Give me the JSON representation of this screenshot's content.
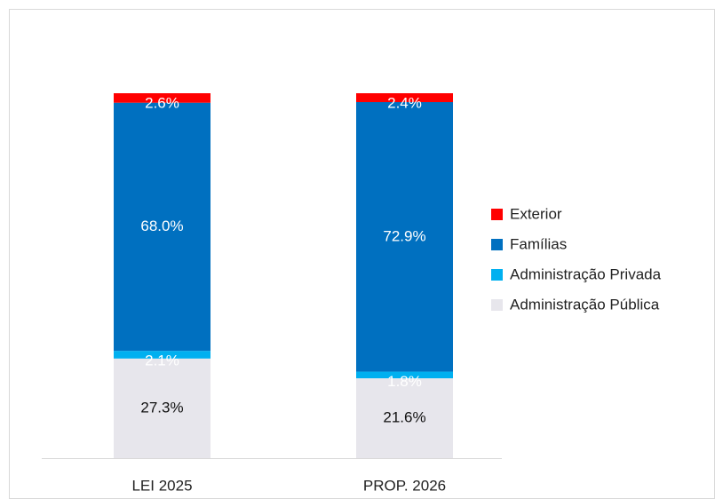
{
  "chart_data": {
    "type": "stacked_bar_100",
    "categories": [
      "LEI 2025",
      "PROP. 2026"
    ],
    "series": [
      {
        "name": "Administração Pública",
        "color": "#e7e6ec",
        "values": [
          27.3,
          21.6
        ],
        "value_labels": [
          "27.3%",
          "21.6%"
        ]
      },
      {
        "name": "Administração Privada",
        "color": "#00b0f0",
        "values": [
          2.1,
          1.8
        ],
        "value_labels": [
          "2.1%",
          "1.8%"
        ]
      },
      {
        "name": "Famílias",
        "color": "#0070c0",
        "values": [
          68.0,
          72.9
        ],
        "value_labels": [
          "68.0%",
          "72.9%"
        ]
      },
      {
        "name": "Exterior",
        "color": "#ff0000",
        "values": [
          2.6,
          2.4
        ],
        "value_labels": [
          "2.6%",
          "2.4%"
        ]
      }
    ],
    "legend": "right"
  }
}
